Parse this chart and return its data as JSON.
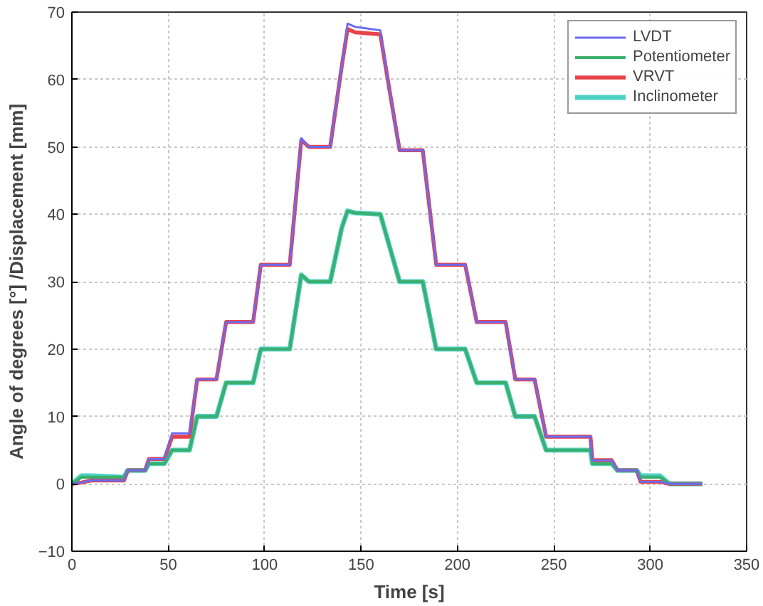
{
  "chart_data": {
    "type": "line",
    "xlabel": "Time [s]",
    "ylabel": "Angle of degrees [°] /Displacement [mm]",
    "x": [
      0,
      5,
      10,
      27,
      29,
      38,
      40,
      48,
      52,
      61,
      65,
      75,
      80,
      94,
      98,
      113,
      119,
      123,
      134,
      140,
      143,
      147,
      160,
      165,
      170,
      182,
      189,
      204,
      210,
      225,
      230,
      240,
      246,
      269,
      270,
      280,
      283,
      293,
      295,
      305,
      310,
      327
    ],
    "series": [
      {
        "name": "LVDT",
        "color": "#6a6af0",
        "values": [
          0,
          0.2,
          0.5,
          0.5,
          2,
          2,
          3.7,
          3.7,
          7.5,
          7.5,
          15.5,
          15.5,
          24,
          24,
          32.5,
          32.5,
          51.3,
          50,
          50,
          62,
          68.3,
          67.8,
          67.3,
          58,
          49.5,
          49.5,
          32.5,
          32.5,
          24,
          24,
          15.5,
          15.5,
          7,
          7,
          3.5,
          3.5,
          2,
          2,
          0.3,
          0.3,
          0,
          0
        ]
      },
      {
        "name": "Potentiometer",
        "color": "#3cae6e",
        "values": [
          0,
          1,
          1,
          1,
          2,
          2,
          3,
          3,
          5,
          5,
          10,
          10,
          15,
          15,
          20,
          20,
          31,
          30,
          30,
          38,
          40.5,
          40.2,
          40,
          35,
          30,
          30,
          20,
          20,
          15,
          15,
          10,
          10,
          5,
          5,
          3,
          3,
          2,
          2,
          1,
          1,
          0,
          0
        ]
      },
      {
        "name": "VRVT",
        "color": "#e8424a",
        "values": [
          0,
          0.2,
          0.5,
          0.5,
          2,
          2,
          3.7,
          3.7,
          7,
          7,
          15.5,
          15.5,
          24,
          24,
          32.5,
          32.5,
          51,
          50,
          50,
          62,
          67.5,
          67,
          66.7,
          58,
          49.5,
          49.5,
          32.5,
          32.5,
          24,
          24,
          15.5,
          15.5,
          7,
          7,
          3.5,
          3.5,
          2,
          2,
          0.3,
          0.3,
          0,
          0
        ]
      },
      {
        "name": "Inclinometer",
        "color": "#4cd2c4",
        "values": [
          0,
          1.2,
          1.2,
          1,
          2,
          2,
          3,
          3,
          5,
          5,
          10,
          10,
          15,
          15,
          20,
          20,
          31,
          30,
          30,
          38,
          40.5,
          40.2,
          40,
          35,
          30,
          30,
          20,
          20,
          15,
          15,
          10,
          10,
          5,
          5,
          3,
          3,
          2,
          2,
          1.2,
          1.2,
          0,
          0
        ]
      }
    ],
    "xlim": [
      0,
      350
    ],
    "xticks": [
      0,
      50,
      100,
      150,
      200,
      250,
      300,
      350
    ],
    "ylim": [
      -10,
      70
    ],
    "yticks": [
      -10,
      0,
      10,
      20,
      30,
      40,
      50,
      60,
      70
    ],
    "grid": true,
    "legend": "top right"
  }
}
